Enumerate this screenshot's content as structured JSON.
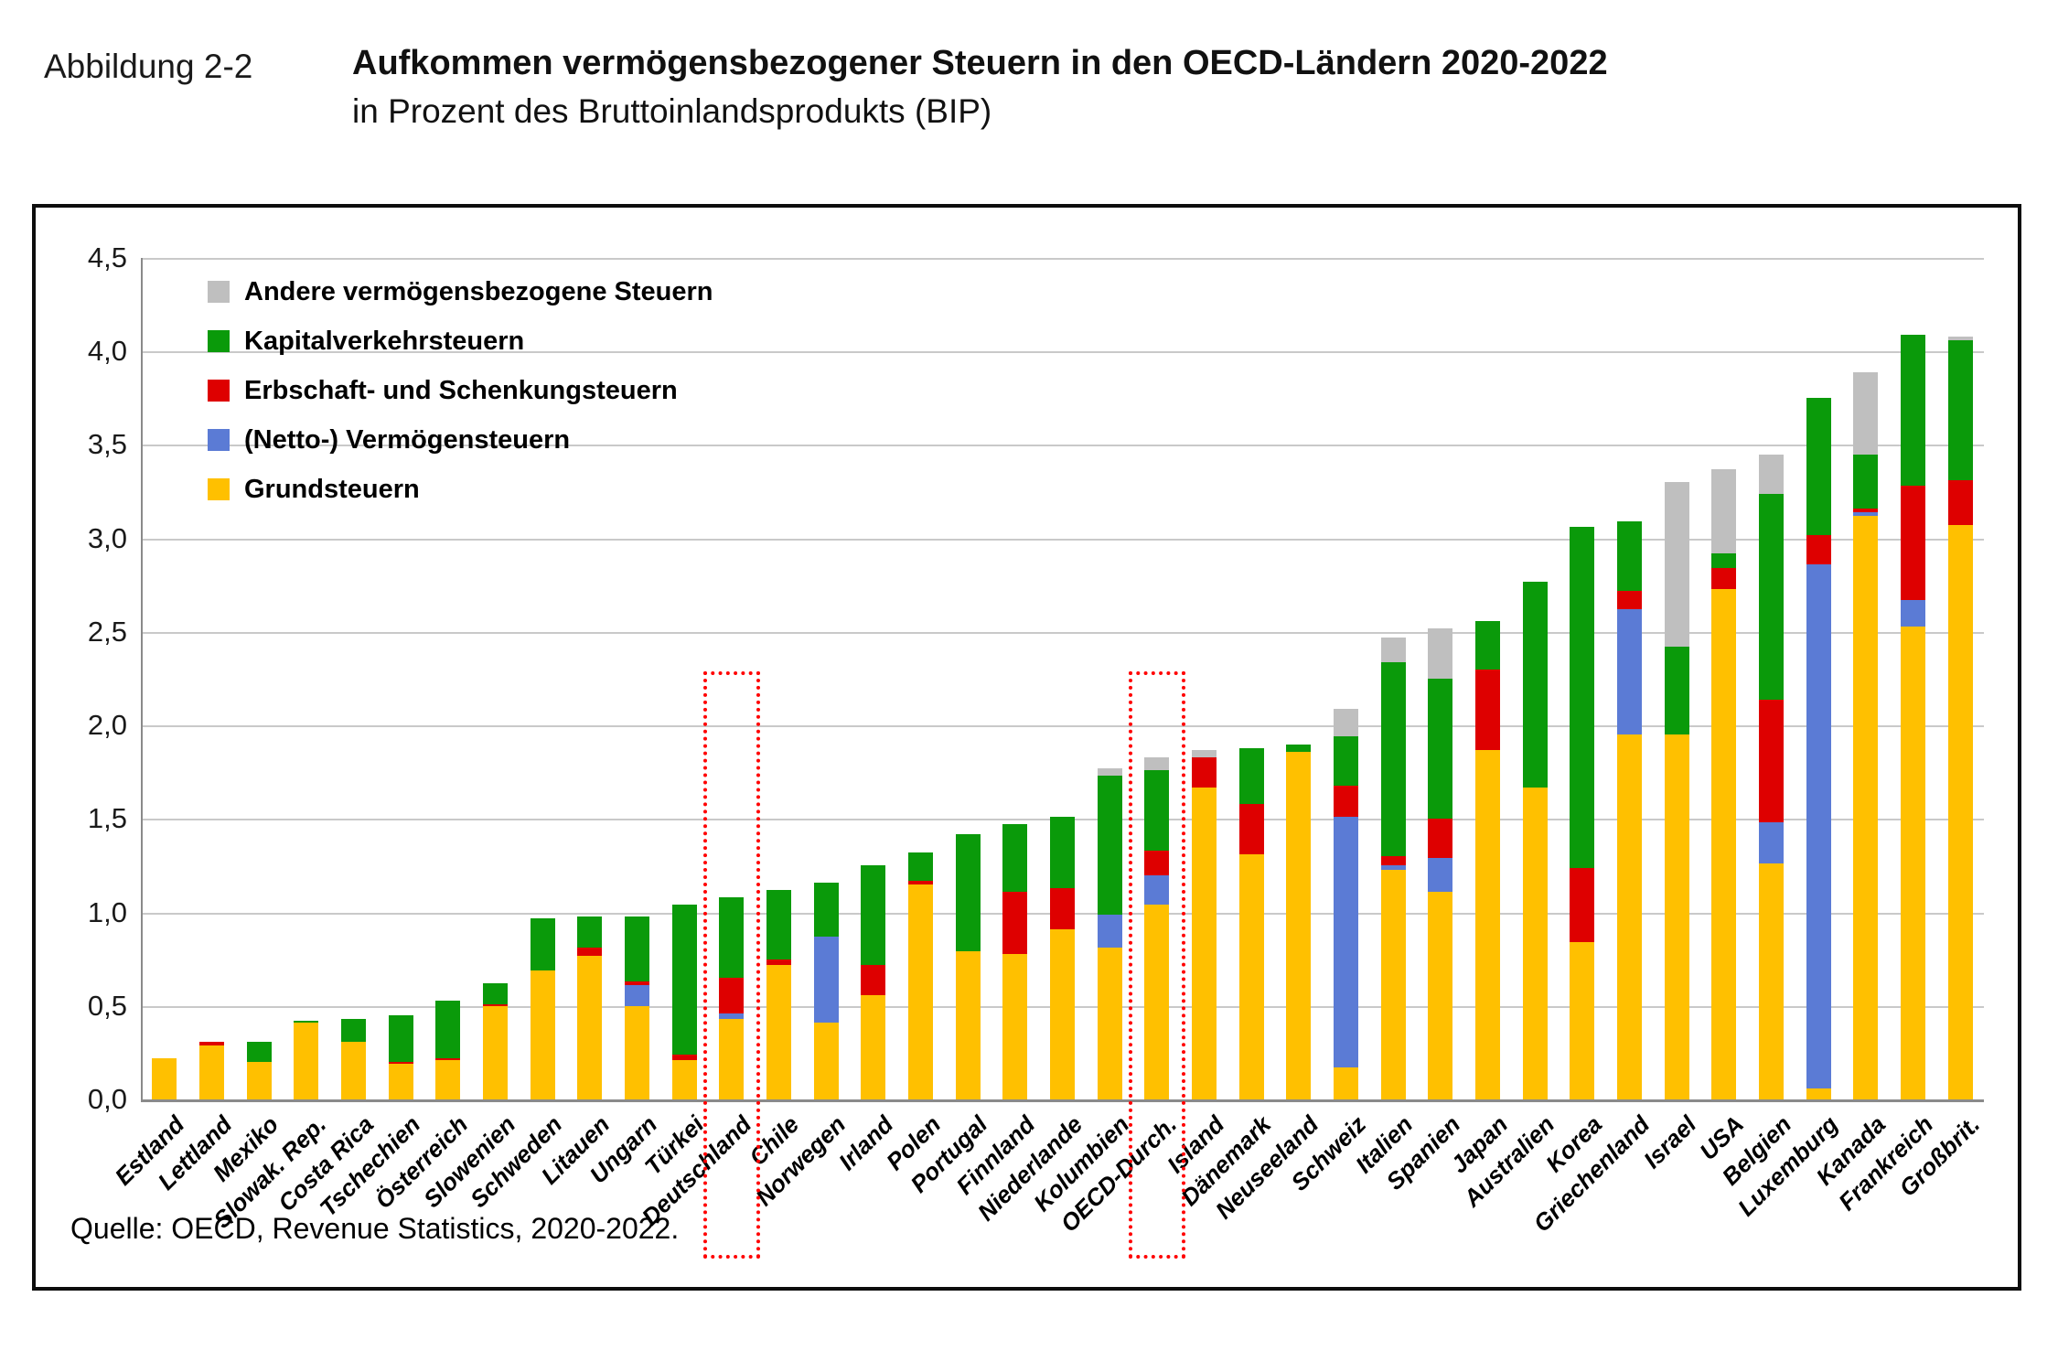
{
  "figure": {
    "label": "Abbildung 2-2",
    "title": "Aufkommen vermögensbezogener Steuern in den OECD-Ländern 2020-2022",
    "subtitle": "in Prozent des Bruttoinlandsprodukts (BIP)",
    "source": "Quelle: OECD, Revenue Statistics, 2020-2022."
  },
  "colors": {
    "grundsteuern": "#FFC000",
    "vermoegensteuern": "#5B7BD5",
    "erbschaftsteuern": "#DE0000",
    "kapitalverkehrsteuern": "#0A9A0A",
    "andere": "#BFBFBF",
    "highlight": "#FF0000",
    "gridline": "#C9C9C9"
  },
  "legend": {
    "items": [
      {
        "label": "Andere vermögensbezogene Steuern",
        "color": "#BFBFBF"
      },
      {
        "label": "Kapitalverkehrsteuern",
        "color": "#0A9A0A"
      },
      {
        "label": "Erbschaft- und Schenkungsteuern",
        "color": "#DE0000"
      },
      {
        "label": "(Netto-) Vermögensteuern",
        "color": "#5B7BD5"
      },
      {
        "label": "Grundsteuern",
        "color": "#FFC000"
      }
    ]
  },
  "chart_data": {
    "type": "bar",
    "stacked": true,
    "title": "Aufkommen vermögensbezogener Steuern in den OECD-Ländern 2020-2022",
    "ylabel": "Prozent des BIP",
    "ylim": [
      0,
      4.5
    ],
    "ytick_step": 0.5,
    "ytick_labels": [
      "0,0",
      "0,5",
      "1,0",
      "1,5",
      "2,0",
      "2,5",
      "3,0",
      "3,5",
      "4,0",
      "4,5"
    ],
    "grid": true,
    "legend_position": "top-left-inside",
    "categories": [
      "Estland",
      "Lettland",
      "Mexiko",
      "Slowak. Rep.",
      "Costa Rica",
      "Tschechien",
      "Österreich",
      "Slowenien",
      "Schweden",
      "Litauen",
      "Ungarn",
      "Türkei",
      "Deutschland",
      "Chile",
      "Norwegen",
      "Irland",
      "Polen",
      "Portugal",
      "Finnland",
      "Niederlande",
      "Kolumbien",
      "OECD-Durch.",
      "Island",
      "Dänemark",
      "Neuseeland",
      "Schweiz",
      "Italien",
      "Spanien",
      "Japan",
      "Australien",
      "Korea",
      "Griechenland",
      "Israel",
      "USA",
      "Belgien",
      "Luxemburg",
      "Kanada",
      "Frankreich",
      "Großbrit."
    ],
    "series": [
      {
        "name": "Grundsteuern",
        "color": "#FFC000",
        "values": [
          0.22,
          0.29,
          0.2,
          0.41,
          0.31,
          0.19,
          0.21,
          0.5,
          0.69,
          0.77,
          0.5,
          0.21,
          0.43,
          0.72,
          0.41,
          0.56,
          1.15,
          0.79,
          0.78,
          0.91,
          0.81,
          1.04,
          1.67,
          1.31,
          1.86,
          0.17,
          1.23,
          1.11,
          1.87,
          1.67,
          0.84,
          1.95,
          1.95,
          2.73,
          1.26,
          0.06,
          3.12,
          2.53,
          3.07
        ]
      },
      {
        "name": "(Netto-) Vermögensteuern",
        "color": "#5B7BD5",
        "values": [
          0,
          0,
          0,
          0,
          0,
          0,
          0,
          0,
          0,
          0,
          0.11,
          0,
          0.03,
          0,
          0.46,
          0,
          0,
          0,
          0,
          0,
          0.18,
          0.16,
          0,
          0,
          0,
          1.34,
          0.02,
          0.18,
          0,
          0,
          0,
          0.67,
          0,
          0,
          0.22,
          2.8,
          0.02,
          0.14,
          0
        ]
      },
      {
        "name": "Erbschaft- und Schenkungsteuern",
        "color": "#DE0000",
        "values": [
          0,
          0.02,
          0,
          0,
          0,
          0.01,
          0.01,
          0.01,
          0,
          0.04,
          0.02,
          0.03,
          0.19,
          0.03,
          0,
          0.16,
          0.02,
          0,
          0.33,
          0.22,
          0,
          0.13,
          0.16,
          0.27,
          0,
          0.17,
          0.05,
          0.21,
          0.43,
          0,
          0.4,
          0.1,
          0,
          0.11,
          0.66,
          0.16,
          0.02,
          0.61,
          0.24
        ]
      },
      {
        "name": "Kapitalverkehrsteuern",
        "color": "#0A9A0A",
        "values": [
          0,
          0,
          0.11,
          0.01,
          0.12,
          0.25,
          0.31,
          0.11,
          0.28,
          0.17,
          0.35,
          0.8,
          0.43,
          0.37,
          0.29,
          0.53,
          0.15,
          0.63,
          0.36,
          0.38,
          0.74,
          0.43,
          0,
          0.3,
          0.04,
          0.26,
          1.04,
          0.75,
          0.26,
          1.1,
          1.82,
          0.37,
          0.47,
          0.08,
          1.1,
          0.73,
          0.29,
          0.81,
          0.75
        ]
      },
      {
        "name": "Andere vermögensbezogene Steuern",
        "color": "#BFBFBF",
        "values": [
          0,
          0,
          0,
          0,
          0,
          0,
          0,
          0,
          0,
          0,
          0,
          0,
          0,
          0,
          0,
          0,
          0,
          0,
          0,
          0,
          0.04,
          0.07,
          0.04,
          0,
          0,
          0.15,
          0.13,
          0.27,
          0,
          0,
          0,
          0,
          0.88,
          0.45,
          0.21,
          0,
          0.44,
          0,
          0.02
        ]
      }
    ],
    "totals": [
      0.22,
      0.31,
      0.31,
      0.42,
      0.43,
      0.45,
      0.53,
      0.62,
      0.97,
      0.98,
      0.98,
      1.04,
      1.08,
      1.12,
      1.16,
      1.25,
      1.32,
      1.42,
      1.47,
      1.51,
      1.77,
      1.83,
      1.87,
      1.88,
      1.9,
      2.09,
      2.47,
      2.52,
      2.56,
      2.77,
      3.06,
      3.09,
      3.3,
      3.37,
      3.45,
      3.75,
      3.89,
      4.09,
      4.08
    ],
    "highlighted_categories": [
      "Deutschland",
      "OECD-Durch."
    ]
  }
}
